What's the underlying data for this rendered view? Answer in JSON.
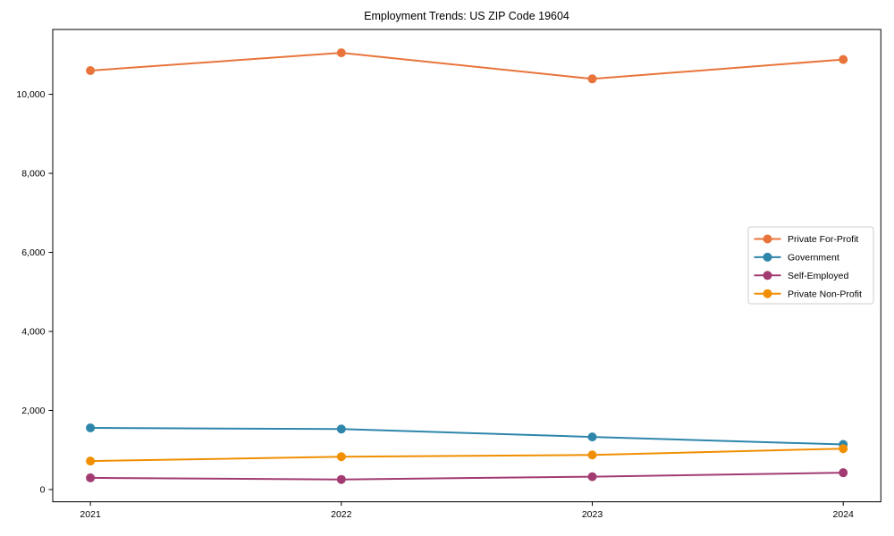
{
  "chart_data": {
    "type": "line",
    "title": "Employment Trends: US ZIP Code 19604",
    "x": [
      2021,
      2022,
      2023,
      2024
    ],
    "x_tick_labels": [
      "2021",
      "2022",
      "2023",
      "2024"
    ],
    "series": [
      {
        "name": "Private For-Profit",
        "color": "#E8743B",
        "values": [
          10600,
          11050,
          10390,
          10880
        ]
      },
      {
        "name": "Government",
        "color": "#2E86AB",
        "values": [
          1560,
          1530,
          1330,
          1140
        ]
      },
      {
        "name": "Self-Employed",
        "color": "#A23B72",
        "values": [
          295,
          255,
          325,
          425
        ]
      },
      {
        "name": "Private Non-Profit",
        "color": "#F18F01",
        "values": [
          720,
          830,
          875,
          1035
        ]
      }
    ],
    "xlabel": "",
    "ylabel": "",
    "xlim": [
      2020.85,
      2024.15
    ],
    "ylim": [
      -310,
      11640
    ],
    "yticks": [
      0,
      2000,
      4000,
      6000,
      8000,
      10000
    ],
    "ytick_labels": [
      "0",
      "2,000",
      "4,000",
      "6,000",
      "8,000",
      "10,000"
    ],
    "grid": false,
    "marker": "circle",
    "line_width": 2,
    "legend": {
      "position": "center-right",
      "border_color": "#cccccc",
      "background": "#ffffff",
      "items": [
        "Private For-Profit",
        "Government",
        "Self-Employed",
        "Private Non-Profit"
      ]
    },
    "axes": {
      "spine_color": "#000000",
      "tick_color": "#000000",
      "text_color": "#000000"
    }
  }
}
